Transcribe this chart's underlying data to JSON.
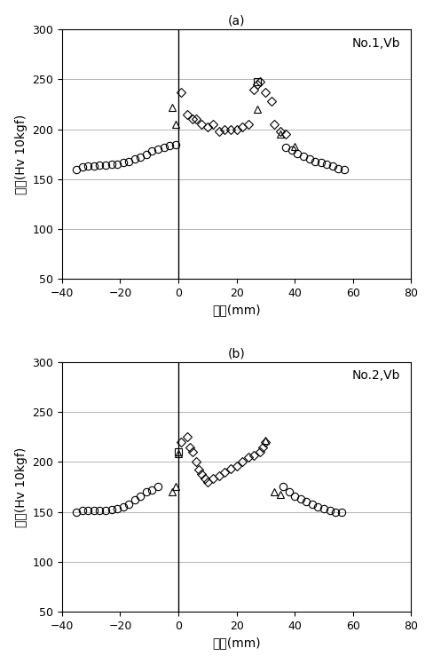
{
  "title_a": "(a)",
  "title_b": "(b)",
  "label_a": "No.1,Vb",
  "label_b": "No.2,Vb",
  "xlabel": "位置(mm)",
  "ylabel": "硬さ(Hv 10kgf)",
  "xlim": [
    -40,
    80
  ],
  "ylim": [
    50,
    300
  ],
  "xticks": [
    -40,
    -20,
    0,
    20,
    40,
    60,
    80
  ],
  "yticks": [
    50,
    100,
    150,
    200,
    250,
    300
  ],
  "figsize": [
    4.88,
    7.48
  ],
  "dpi": 100,
  "circle_a": [
    [
      -35,
      160
    ],
    [
      -33,
      162
    ],
    [
      -31,
      163
    ],
    [
      -29,
      163
    ],
    [
      -27,
      164
    ],
    [
      -25,
      164
    ],
    [
      -23,
      165
    ],
    [
      -21,
      165
    ],
    [
      -19,
      167
    ],
    [
      -17,
      168
    ],
    [
      -15,
      170
    ],
    [
      -13,
      172
    ],
    [
      -11,
      175
    ],
    [
      -9,
      178
    ],
    [
      -7,
      180
    ],
    [
      -5,
      182
    ],
    [
      -3,
      184
    ],
    [
      -1,
      185
    ],
    [
      37,
      182
    ],
    [
      39,
      179
    ],
    [
      41,
      176
    ],
    [
      43,
      173
    ],
    [
      45,
      170
    ],
    [
      47,
      168
    ],
    [
      49,
      167
    ],
    [
      51,
      165
    ],
    [
      53,
      163
    ],
    [
      55,
      161
    ],
    [
      57,
      160
    ]
  ],
  "triangle_a": [
    [
      -2,
      222
    ],
    [
      -1,
      205
    ],
    [
      27,
      220
    ],
    [
      35,
      195
    ],
    [
      40,
      183
    ]
  ],
  "diamond_a": [
    [
      1,
      237
    ],
    [
      3,
      215
    ],
    [
      5,
      210
    ],
    [
      6,
      210
    ],
    [
      8,
      205
    ],
    [
      10,
      202
    ],
    [
      12,
      205
    ],
    [
      14,
      198
    ],
    [
      16,
      200
    ],
    [
      18,
      200
    ],
    [
      20,
      200
    ],
    [
      22,
      202
    ],
    [
      24,
      205
    ],
    [
      26,
      240
    ],
    [
      27,
      245
    ],
    [
      28,
      248
    ],
    [
      30,
      237
    ],
    [
      32,
      228
    ],
    [
      33,
      205
    ],
    [
      35,
      198
    ],
    [
      37,
      195
    ]
  ],
  "square_a": [
    [
      27,
      248
    ]
  ],
  "circle_b": [
    [
      -35,
      150
    ],
    [
      -33,
      151
    ],
    [
      -31,
      151
    ],
    [
      -29,
      151
    ],
    [
      -27,
      151
    ],
    [
      -25,
      151
    ],
    [
      -23,
      152
    ],
    [
      -21,
      153
    ],
    [
      -19,
      155
    ],
    [
      -17,
      158
    ],
    [
      -15,
      162
    ],
    [
      -13,
      166
    ],
    [
      -11,
      170
    ],
    [
      -9,
      172
    ],
    [
      -7,
      175
    ],
    [
      36,
      175
    ],
    [
      38,
      170
    ],
    [
      40,
      166
    ],
    [
      42,
      163
    ],
    [
      44,
      160
    ],
    [
      46,
      158
    ],
    [
      48,
      155
    ],
    [
      50,
      153
    ],
    [
      52,
      151
    ],
    [
      54,
      150
    ],
    [
      56,
      150
    ]
  ],
  "triangle_b": [
    [
      -2,
      170
    ],
    [
      -1,
      175
    ],
    [
      0,
      208
    ],
    [
      30,
      222
    ],
    [
      33,
      170
    ],
    [
      35,
      167
    ]
  ],
  "diamond_b": [
    [
      1,
      220
    ],
    [
      3,
      225
    ],
    [
      4,
      215
    ],
    [
      5,
      210
    ],
    [
      6,
      200
    ],
    [
      7,
      192
    ],
    [
      8,
      188
    ],
    [
      9,
      183
    ],
    [
      10,
      180
    ],
    [
      12,
      183
    ],
    [
      14,
      186
    ],
    [
      16,
      190
    ],
    [
      18,
      193
    ],
    [
      20,
      196
    ],
    [
      22,
      200
    ],
    [
      24,
      205
    ],
    [
      26,
      207
    ],
    [
      28,
      210
    ],
    [
      29,
      215
    ],
    [
      30,
      220
    ]
  ],
  "square_b": [
    [
      0,
      210
    ]
  ],
  "marker_size": 6,
  "vline_color": "black",
  "grid_color": "#aaaaaa",
  "bg_color": "white"
}
